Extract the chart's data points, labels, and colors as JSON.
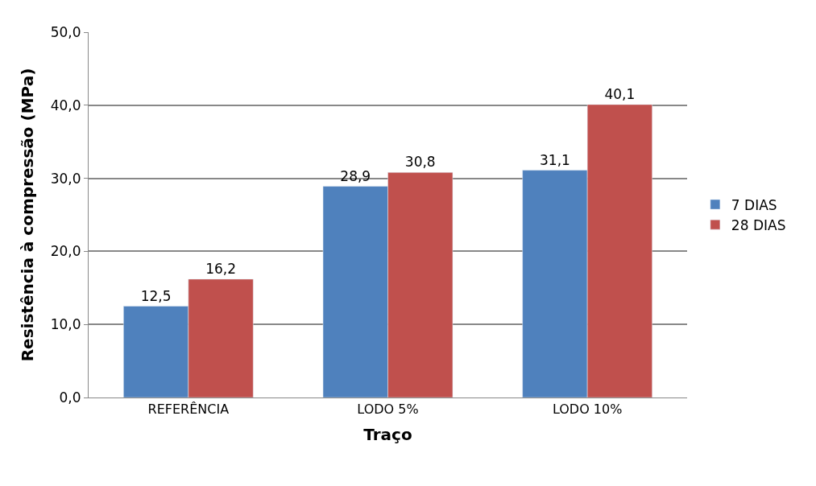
{
  "chart_data": {
    "type": "bar",
    "xlabel": "Traço",
    "ylabel": "Resistência à compressão (MPa)",
    "categories": [
      "REFERÊNCIA",
      "LODO 5%",
      "LODO 10%"
    ],
    "series": [
      {
        "name": "7 DIAS",
        "color": "#4f81bd",
        "values": [
          12.5,
          28.9,
          31.1
        ],
        "value_labels": [
          "12,5",
          "28,9",
          "31,1"
        ]
      },
      {
        "name": "28 DIAS",
        "color": "#c0504d",
        "values": [
          16.2,
          30.8,
          40.1
        ],
        "value_labels": [
          "16,2",
          "30,8",
          "40,1"
        ]
      }
    ],
    "ylim": [
      0,
      50
    ],
    "yticks": [
      {
        "value": 0,
        "label": "0,0"
      },
      {
        "value": 10,
        "label": "10,0"
      },
      {
        "value": 20,
        "label": "20,0"
      },
      {
        "value": 30,
        "label": "30,0"
      },
      {
        "value": 40,
        "label": "40,0"
      },
      {
        "value": 50,
        "label": "50,0"
      }
    ],
    "grid": true,
    "legend": "right"
  }
}
